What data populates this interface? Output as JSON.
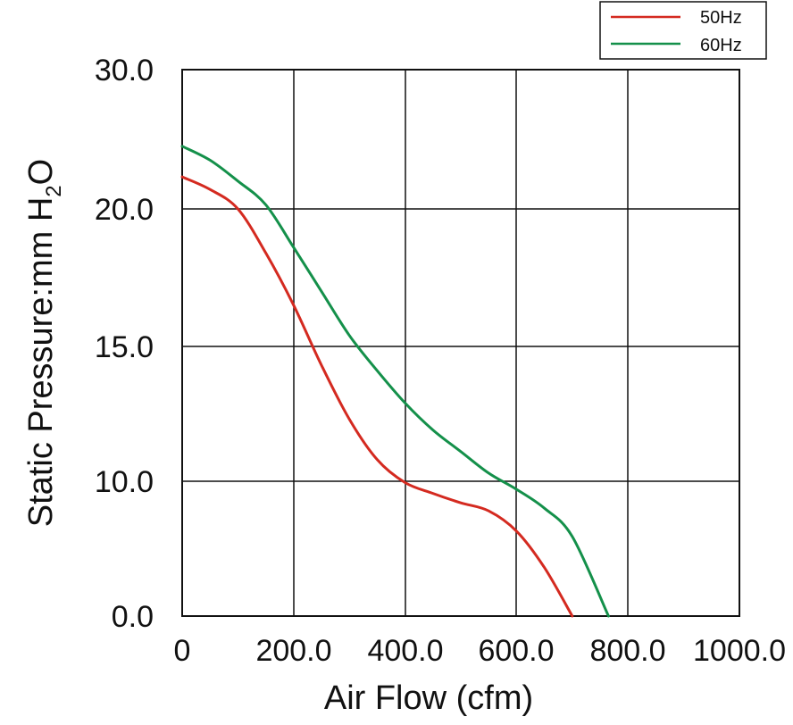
{
  "chart_data": {
    "type": "line",
    "xlabel": "Air Flow (cfm)",
    "ylabel": "Static Pressure:mm H2O",
    "ylabel_parts": {
      "main": "Static Pressure:mm H",
      "subscript": "2",
      "suffix": "O"
    },
    "xlim": [
      0,
      1000
    ],
    "ylim": [
      0,
      30
    ],
    "x_ticks": [
      0,
      200,
      400,
      600,
      800,
      1000
    ],
    "x_tick_labels": [
      "0",
      "200.0",
      "400.0",
      "600.0",
      "800.0",
      "1000.0"
    ],
    "y_ticks": [
      0,
      10,
      15,
      20,
      30
    ],
    "y_tick_labels": [
      "0.0",
      "10.0",
      "15.0",
      "20.0",
      "30.0"
    ],
    "grid": true,
    "legend_position": "top-right",
    "series": [
      {
        "name": "50Hz",
        "color": "#d42a20",
        "x": [
          0,
          50,
          100,
          150,
          200,
          250,
          300,
          350,
          400,
          450,
          500,
          550,
          600,
          650,
          700
        ],
        "y": [
          22.3,
          21.4,
          20.0,
          18.4,
          16.5,
          14.3,
          12.3,
          10.8,
          9.9,
          9.1,
          8.4,
          7.8,
          6.3,
          3.6,
          0.0
        ]
      },
      {
        "name": "60Hz",
        "color": "#14904a",
        "x": [
          0,
          50,
          100,
          150,
          200,
          250,
          300,
          350,
          400,
          450,
          500,
          550,
          600,
          650,
          700,
          765
        ],
        "y": [
          24.5,
          23.5,
          22.0,
          20.3,
          18.6,
          17.0,
          15.4,
          14.1,
          12.9,
          11.9,
          11.1,
          10.3,
          9.4,
          8.0,
          5.9,
          0.0
        ]
      }
    ]
  }
}
